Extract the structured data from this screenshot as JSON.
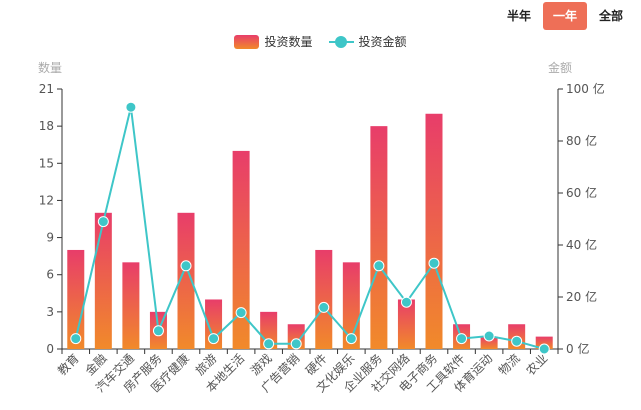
{
  "period_tabs": {
    "half_year": "半年",
    "one_year": "一年",
    "all": "全部",
    "active": "one_year"
  },
  "legend": {
    "count_label": "投资数量",
    "amount_label": "投资金额"
  },
  "colors": {
    "bar_top": "#e83d6a",
    "bar_bottom": "#f18a2a",
    "line": "#3ec6c8",
    "active_tab": "#ee6f57",
    "axis_text": "#555555",
    "axis_name": "#aaaaaa"
  },
  "chart_data": {
    "type": "bar",
    "categories": [
      "教育",
      "金融",
      "汽车交通",
      "房产服务",
      "医疗健康",
      "旅游",
      "本地生活",
      "游戏",
      "广告营销",
      "硬件",
      "文化娱乐",
      "企业服务",
      "社交网络",
      "电子商务",
      "工具软件",
      "体育运动",
      "物流",
      "农业"
    ],
    "series": [
      {
        "name": "投资数量",
        "type": "bar",
        "axis": "left",
        "values": [
          8,
          11,
          7,
          3,
          11,
          4,
          16,
          3,
          2,
          8,
          7,
          18,
          4,
          19,
          2,
          1,
          2,
          1
        ]
      },
      {
        "name": "投资金额",
        "type": "line",
        "axis": "right",
        "values": [
          4,
          49,
          93,
          7,
          32,
          4,
          14,
          2,
          2,
          16,
          4,
          32,
          18,
          33,
          4,
          5,
          3,
          0
        ]
      }
    ],
    "y_left": {
      "name": "数量",
      "min": 0,
      "max": 21,
      "ticks": [
        "0",
        "3",
        "6",
        "9",
        "12",
        "15",
        "18",
        "21"
      ]
    },
    "y_right": {
      "name": "金额",
      "min": 0,
      "max": 100,
      "ticks": [
        "0 亿",
        "20 亿",
        "40 亿",
        "60 亿",
        "80 亿",
        "100 亿"
      ]
    },
    "grid": false,
    "legend_position": "top-center"
  }
}
